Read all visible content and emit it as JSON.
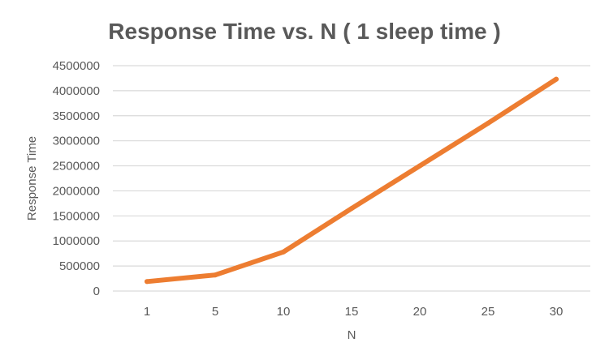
{
  "chart_data": {
    "type": "line",
    "title": "Response Time vs. N ( 1 sleep time )",
    "xlabel": "N",
    "ylabel": "Response Time",
    "categories": [
      "1",
      "5",
      "10",
      "15",
      "20",
      "25",
      "30"
    ],
    "series": [
      {
        "values": [
          190000,
          320000,
          780000,
          1650000,
          2500000,
          3350000,
          4230000
        ],
        "color": "#ED7D31"
      }
    ],
    "ylim": [
      0,
      4500000
    ],
    "yticks": [
      "0",
      "500000",
      "1000000",
      "1500000",
      "2000000",
      "2500000",
      "3000000",
      "3500000",
      "4000000",
      "4500000"
    ],
    "grid": true,
    "legend": "none",
    "gridline_color": "#D9D9D9",
    "text_color": "#595959"
  }
}
